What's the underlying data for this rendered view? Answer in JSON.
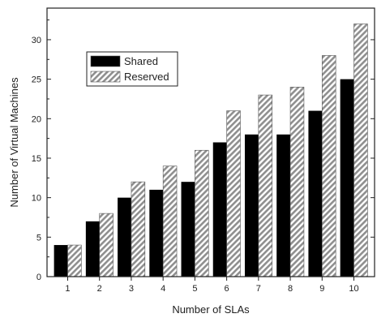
{
  "chart_data": {
    "type": "bar",
    "title": "",
    "xlabel": "Number of SLAs",
    "ylabel": "Number of Virtual Machines",
    "categories": [
      "1",
      "2",
      "3",
      "4",
      "5",
      "6",
      "7",
      "8",
      "9",
      "10"
    ],
    "series": [
      {
        "name": "Shared",
        "values": [
          4,
          7,
          10,
          11,
          12,
          17,
          18,
          18,
          21,
          25
        ],
        "color": "#000000",
        "pattern": "solid"
      },
      {
        "name": "Reserved",
        "values": [
          4,
          8,
          12,
          14,
          16,
          21,
          23,
          24,
          28,
          32
        ],
        "color": "#9a9a9a",
        "pattern": "diagonal-hatch"
      }
    ],
    "ylim": [
      0,
      34
    ],
    "yticks": [
      0,
      5,
      10,
      15,
      20,
      25,
      30
    ],
    "grid": false,
    "legend": "top-left"
  }
}
